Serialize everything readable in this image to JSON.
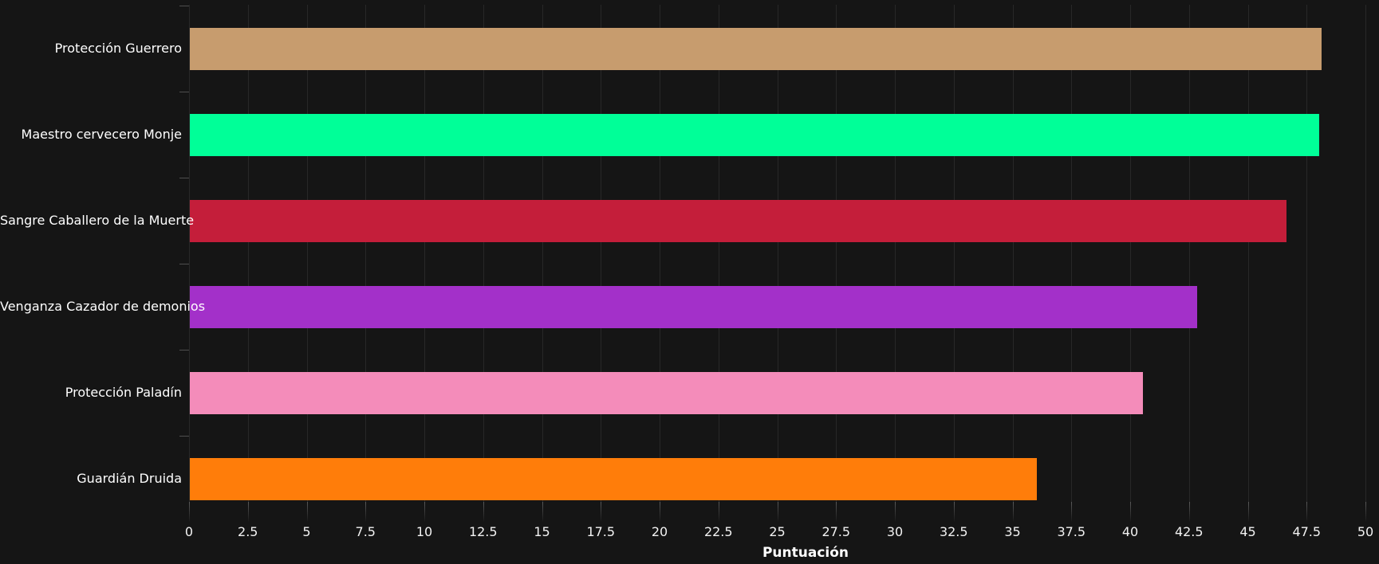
{
  "chart_data": {
    "type": "bar",
    "orientation": "horizontal",
    "title": "",
    "xlabel": "Puntuación",
    "ylabel": "",
    "xlim": [
      0,
      50
    ],
    "grid": true,
    "legend": false,
    "xticks": [
      0,
      2.5,
      5,
      7.5,
      10,
      12.5,
      15,
      17.5,
      20,
      22.5,
      25,
      27.5,
      30,
      32.5,
      35,
      37.5,
      40,
      42.5,
      45,
      47.5,
      50
    ],
    "xtick_labels": [
      "0",
      "2.5",
      "5",
      "7.5",
      "10",
      "12.5",
      "15",
      "17.5",
      "20",
      "22.5",
      "25",
      "27.5",
      "30",
      "32.5",
      "35",
      "37.5",
      "40",
      "42.5",
      "45",
      "47.5",
      "50"
    ],
    "categories": [
      "Protección Guerrero",
      "Maestro cervecero Monje",
      "Sangre Caballero de la Muerte",
      "Venganza Cazador de demonios",
      "Protección Paladín",
      "Guardián Druida"
    ],
    "values": [
      48.1,
      48.0,
      46.6,
      42.8,
      40.5,
      36.0
    ],
    "bar_colors": [
      "#C79C6E",
      "#00FF98",
      "#C41E3A",
      "#A330C9",
      "#F48CBA",
      "#FF7D0A"
    ]
  },
  "colors": {
    "background": "#151515",
    "gridline": "#282828",
    "axis_spine": "#3a3a3a",
    "tick_mark": "#5a5a5a",
    "label_text": "#ffffff"
  }
}
